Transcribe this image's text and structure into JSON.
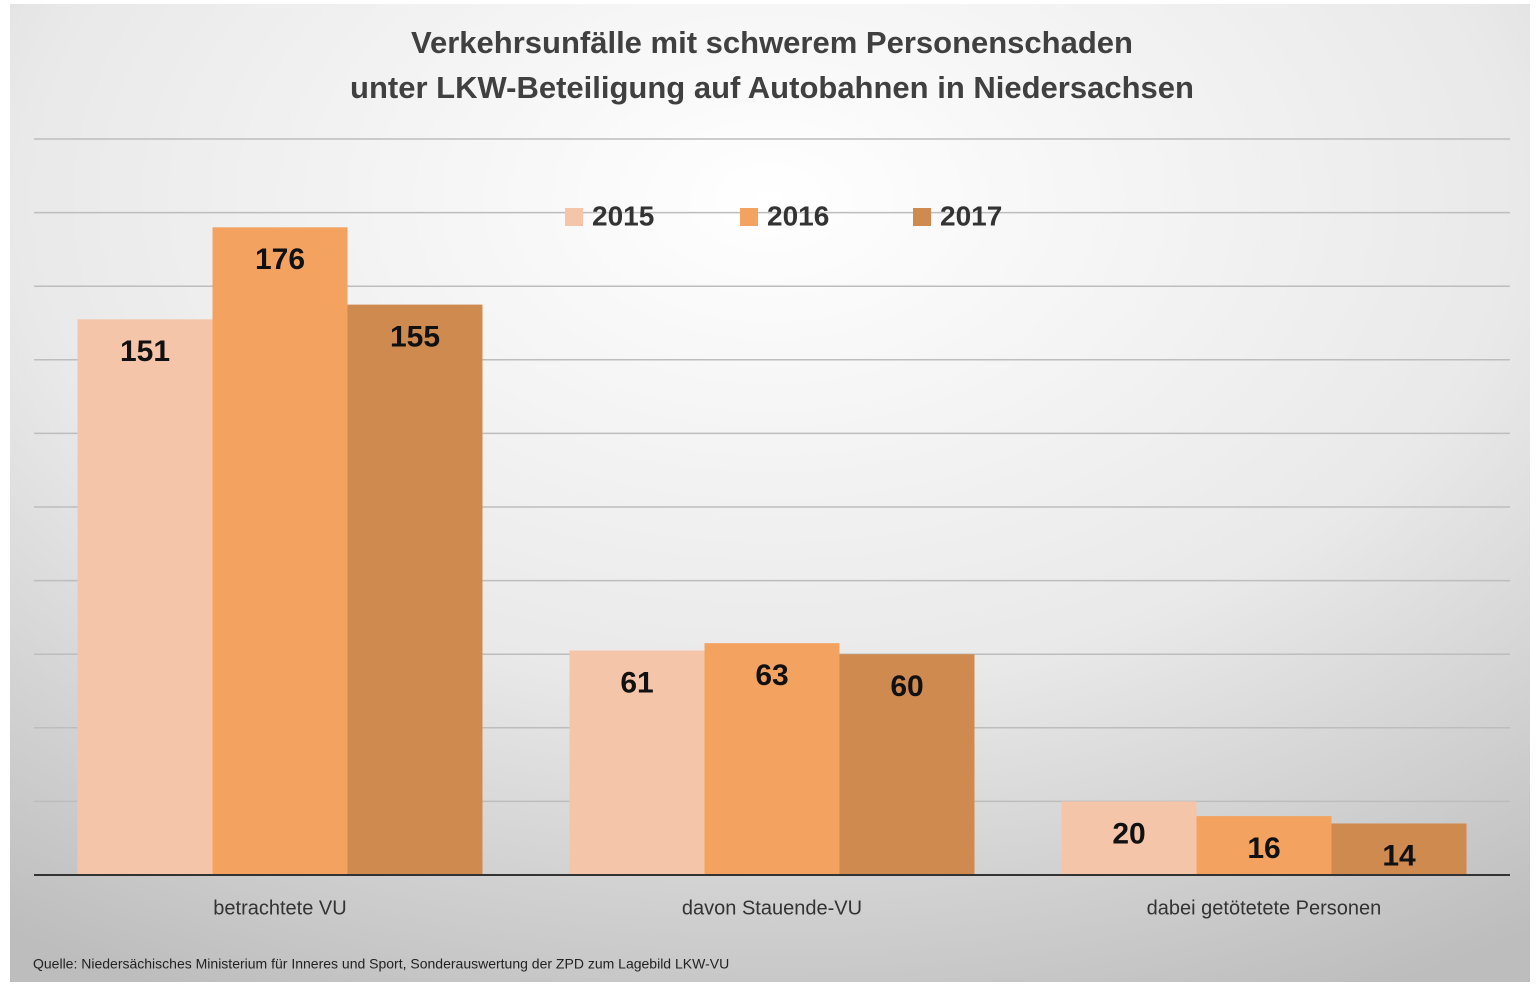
{
  "chart_data": {
    "type": "bar",
    "title": [
      "Verkehrsunfälle mit schwerem Personenschaden",
      "unter LKW-Beteiligung auf Autobahnen in Niedersachsen"
    ],
    "categories": [
      "betrachtete VU",
      "davon Stauende-VU",
      "dabei getötetete Personen"
    ],
    "series": [
      {
        "name": "2015",
        "color": "#f5c5aa",
        "values": [
          151,
          61,
          20
        ]
      },
      {
        "name": "2016",
        "color": "#f3a35f",
        "values": [
          176,
          63,
          16
        ]
      },
      {
        "name": "2017",
        "color": "#cf8a50",
        "values": [
          155,
          60,
          14
        ]
      }
    ],
    "ylim": [
      0,
      200
    ],
    "yticks": [
      0,
      20,
      40,
      60,
      80,
      100,
      120,
      140,
      160,
      180,
      200
    ],
    "ytick_labels": false,
    "grid": true,
    "legend": "top",
    "source": "Quelle: Niedersächisches Ministerium für Inneres und Sport, Sonderauswertung der ZPD zum Lagebild LKW-VU"
  }
}
